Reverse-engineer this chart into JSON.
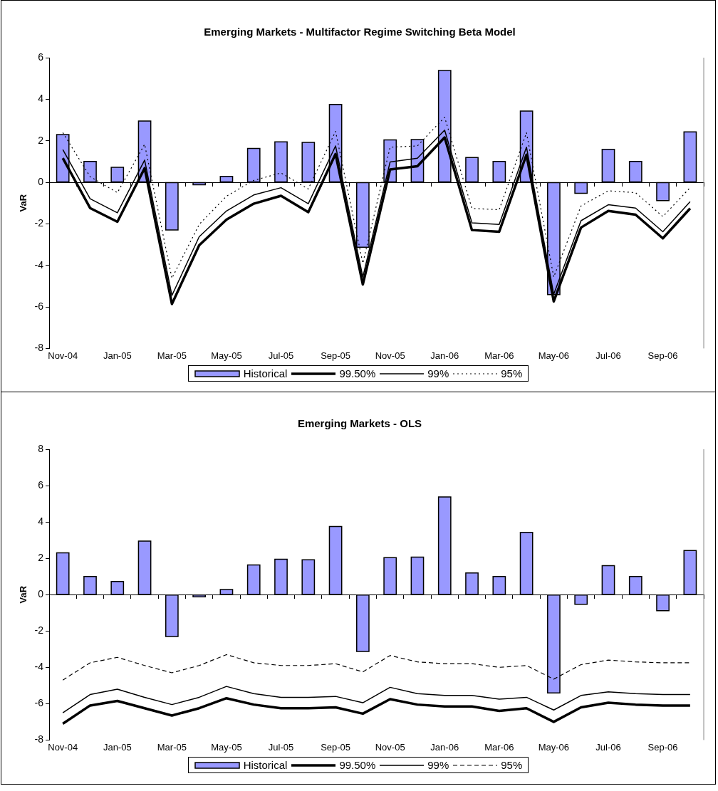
{
  "chart_data": [
    {
      "type": "bar",
      "title": "Emerging Markets - Multifactor Regime Switching Beta Model",
      "ylabel": "VaR",
      "categories": [
        "Nov-04",
        null,
        "Jan-05",
        null,
        "Mar-05",
        null,
        "May-05",
        null,
        "Jul-05",
        null,
        "Sep-05",
        null,
        "Nov-05",
        null,
        "Jan-06",
        null,
        "Mar-06",
        null,
        "May-06",
        null,
        "Jul-06",
        null,
        "Sep-06",
        null
      ],
      "ylim": [
        -8,
        6
      ],
      "yticks": [
        -8,
        -6,
        -4,
        -2,
        0,
        2,
        4,
        6
      ],
      "legend": "bottom",
      "series": [
        {
          "name": "Historical",
          "type": "bar",
          "color": "#9999ff",
          "values": [
            2.3,
            1.0,
            0.72,
            2.95,
            -2.3,
            -0.12,
            0.28,
            1.63,
            1.95,
            1.92,
            3.75,
            -3.13,
            2.04,
            2.06,
            5.38,
            1.19,
            1.0,
            3.43,
            -5.41,
            -0.53,
            1.59,
            1.0,
            -0.88,
            2.43
          ]
        },
        {
          "name": "99.50%",
          "type": "line",
          "color": "#000000",
          "line_style": "solid",
          "values": [
            1.16,
            -1.24,
            -1.9,
            0.68,
            -5.86,
            -3.03,
            -1.8,
            -1.03,
            -0.65,
            -1.44,
            1.36,
            -4.92,
            0.62,
            0.77,
            2.16,
            -2.3,
            -2.38,
            1.33,
            -5.74,
            -2.18,
            -1.38,
            -1.56,
            -2.7,
            -1.26
          ]
        },
        {
          "name": "99%",
          "type": "line",
          "color": "#000000",
          "line_style": "solid",
          "values": [
            1.57,
            -0.79,
            -1.47,
            1.07,
            -5.45,
            -2.62,
            -1.38,
            -0.61,
            -0.26,
            -1.03,
            1.75,
            -4.56,
            0.98,
            1.16,
            2.51,
            -1.95,
            -2.03,
            1.69,
            -5.39,
            -1.85,
            -1.08,
            -1.24,
            -2.38,
            -0.93
          ]
        },
        {
          "name": "95%",
          "type": "line",
          "color": "#000000",
          "line_style": "dotted",
          "values": [
            2.39,
            0.27,
            -0.5,
            1.83,
            -4.62,
            -2.03,
            -0.67,
            0.09,
            0.45,
            -0.32,
            2.45,
            -3.9,
            1.69,
            1.75,
            3.13,
            -1.26,
            -1.32,
            2.39,
            -4.56,
            -1.14,
            -0.41,
            -0.5,
            -1.65,
            -0.26
          ]
        }
      ]
    },
    {
      "type": "bar",
      "title": "Emerging Markets - OLS",
      "ylabel": "VaR",
      "categories": [
        "Nov-04",
        null,
        "Jan-05",
        null,
        "Mar-05",
        null,
        "May-05",
        null,
        "Jul-05",
        null,
        "Sep-05",
        null,
        "Nov-05",
        null,
        "Jan-06",
        null,
        "Mar-06",
        null,
        "May-06",
        null,
        "Jul-06",
        null,
        "Sep-06",
        null
      ],
      "ylim": [
        -8,
        8
      ],
      "yticks": [
        -8,
        -6,
        -4,
        -2,
        0,
        2,
        4,
        6,
        8
      ],
      "legend": "bottom",
      "series": [
        {
          "name": "Historical",
          "type": "bar",
          "color": "#9999ff",
          "values": [
            2.3,
            1.0,
            0.72,
            2.95,
            -2.3,
            -0.12,
            0.28,
            1.63,
            1.95,
            1.92,
            3.75,
            -3.13,
            2.04,
            2.06,
            5.38,
            1.19,
            1.0,
            3.43,
            -5.41,
            -0.53,
            1.59,
            1.0,
            -0.88,
            2.43
          ]
        },
        {
          "name": "99.50%",
          "type": "line",
          "color": "#000000",
          "line_style": "solid",
          "values": [
            -7.1,
            -6.1,
            -5.85,
            -6.25,
            -6.65,
            -6.25,
            -5.7,
            -6.05,
            -6.25,
            -6.25,
            -6.2,
            -6.55,
            -5.75,
            -6.05,
            -6.15,
            -6.15,
            -6.4,
            -6.25,
            -7.0,
            -6.2,
            -5.95,
            -6.05,
            -6.1,
            -6.1
          ]
        },
        {
          "name": "99%",
          "type": "line",
          "color": "#000000",
          "line_style": "solid",
          "values": [
            -6.5,
            -5.5,
            -5.2,
            -5.65,
            -6.05,
            -5.65,
            -5.05,
            -5.45,
            -5.65,
            -5.65,
            -5.6,
            -5.95,
            -5.1,
            -5.45,
            -5.55,
            -5.55,
            -5.75,
            -5.65,
            -6.35,
            -5.55,
            -5.35,
            -5.45,
            -5.5,
            -5.5
          ]
        },
        {
          "name": "95%",
          "type": "line",
          "color": "#000000",
          "line_style": "dashed",
          "values": [
            -4.7,
            -3.75,
            -3.45,
            -3.9,
            -4.3,
            -3.9,
            -3.3,
            -3.75,
            -3.9,
            -3.9,
            -3.8,
            -4.25,
            -3.35,
            -3.7,
            -3.8,
            -3.8,
            -4.0,
            -3.9,
            -4.65,
            -3.85,
            -3.6,
            -3.7,
            -3.75,
            -3.75
          ]
        }
      ]
    }
  ]
}
